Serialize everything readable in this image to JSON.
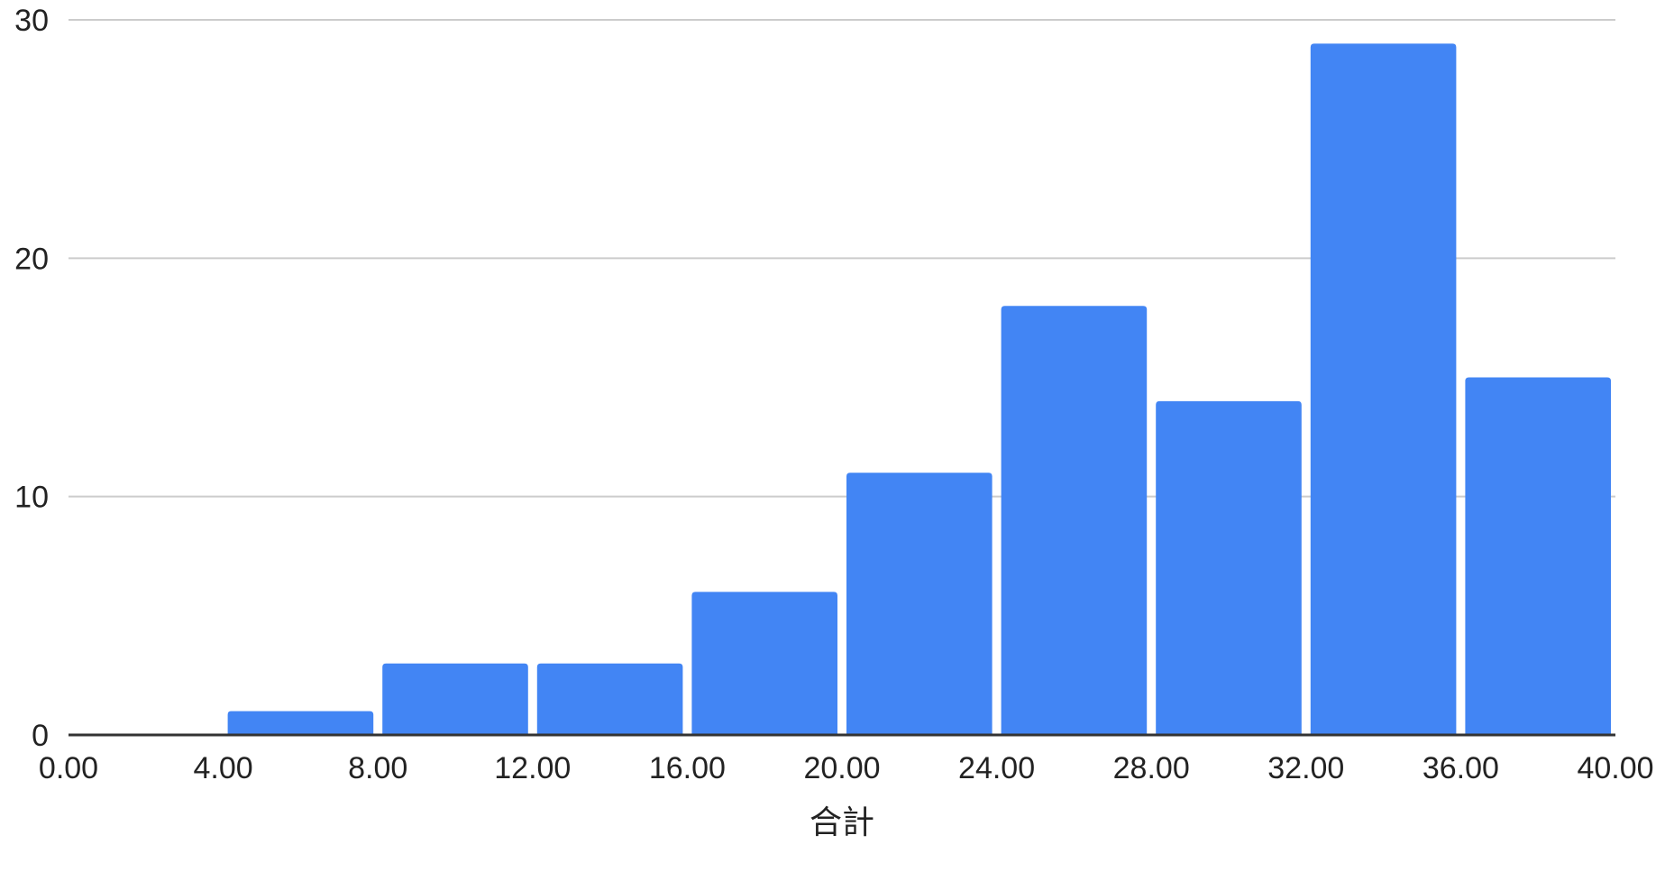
{
  "chart_data": {
    "type": "bar",
    "subtype": "histogram",
    "title": "",
    "xlabel": "合計",
    "ylabel": "",
    "xlim": [
      0,
      40
    ],
    "ylim": [
      0,
      30
    ],
    "x_ticks": [
      "0.00",
      "4.00",
      "8.00",
      "12.00",
      "16.00",
      "20.00",
      "24.00",
      "28.00",
      "32.00",
      "36.00",
      "40.00"
    ],
    "y_ticks": [
      "0",
      "10",
      "20",
      "30"
    ],
    "bins": [
      {
        "start": 0,
        "end": 4,
        "value": 0
      },
      {
        "start": 4,
        "end": 8,
        "value": 1
      },
      {
        "start": 8,
        "end": 12,
        "value": 3
      },
      {
        "start": 12,
        "end": 16,
        "value": 3
      },
      {
        "start": 16,
        "end": 20,
        "value": 6
      },
      {
        "start": 20,
        "end": 24,
        "value": 11
      },
      {
        "start": 24,
        "end": 28,
        "value": 18
      },
      {
        "start": 28,
        "end": 32,
        "value": 14
      },
      {
        "start": 32,
        "end": 36,
        "value": 29
      },
      {
        "start": 36,
        "end": 40,
        "value": 15
      }
    ],
    "grid": true,
    "legend": "none",
    "colors": {
      "bar": "#4285f4",
      "grid": "#cccccc",
      "axis": "#333333"
    }
  }
}
